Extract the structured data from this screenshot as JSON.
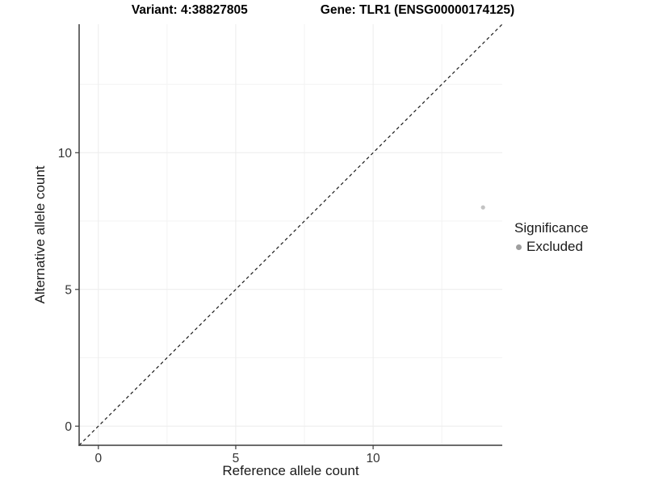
{
  "chart_data": {
    "type": "scatter",
    "title_variant": "Variant: 4:38827805",
    "title_gene": "Gene: TLR1 (ENSG00000174125)",
    "xlabel": "Reference allele count",
    "ylabel": "Alternative allele count",
    "xlim": [
      -0.7,
      14.7
    ],
    "ylim": [
      -0.7,
      14.7
    ],
    "x_major_ticks": [
      0,
      5,
      10
    ],
    "x_minor_ticks": [
      2.5,
      7.5,
      12.5
    ],
    "y_major_ticks": [
      0,
      5,
      10
    ],
    "y_minor_ticks": [
      2.5,
      7.5,
      12.5
    ],
    "grid": {
      "background": "#ffffff",
      "major_color": "#ececec",
      "minor_color": "#f3f3f3"
    },
    "axis_color": "#3c3c3c",
    "tick_label_color": "#333333",
    "identity_line": {
      "slope": 1,
      "intercept": 0,
      "style": "dashed",
      "color": "#1a1a1a"
    },
    "series": [
      {
        "name": "Excluded",
        "color": "#c3c3c3",
        "points": [
          {
            "x": 14,
            "y": 8
          }
        ]
      }
    ],
    "legend": {
      "title": "Significance",
      "position": "right",
      "entries": [
        {
          "label": "Excluded",
          "swatch_color": "#9e9e9e"
        }
      ]
    }
  }
}
